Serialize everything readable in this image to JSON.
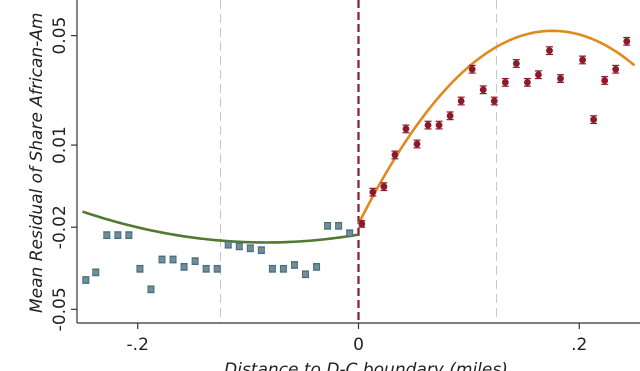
{
  "chart_data": {
    "type": "scatter",
    "xlabel": "Distance to D-C boundary (miles)",
    "ylabel": "Mean Residual of Share African-Am",
    "xlim": [
      -0.255,
      0.255
    ],
    "ylim": [
      -0.055,
      0.063
    ],
    "x_ticks": [
      {
        "value": -0.2,
        "label": "-.2"
      },
      {
        "value": 0,
        "label": "0"
      },
      {
        "value": 0.2,
        "label": ".2"
      }
    ],
    "y_ticks": [
      {
        "value": -0.05,
        "label": "-0.05"
      },
      {
        "value": -0.02,
        "label": "-0.02"
      },
      {
        "value": 0.01,
        "label": "0.01"
      },
      {
        "value": 0.05,
        "label": "0.05"
      }
    ],
    "reference_lines": [
      {
        "x": -0.125,
        "style": "dashed",
        "color": "#c8c8c8"
      },
      {
        "x": 0,
        "style": "dashed",
        "color": "#8b1a2b"
      },
      {
        "x": 0.125,
        "style": "dashed",
        "color": "#c8c8c8"
      }
    ],
    "series": [
      {
        "side": "left",
        "marker": "square",
        "color": "#4a6f7f",
        "fit_color": "#4f7a2f",
        "fit_coeffs": [
          -0.0227,
          0.0688,
          0.4098
        ],
        "points": [
          {
            "x": -0.247,
            "y": -0.0393,
            "err": 0.0012
          },
          {
            "x": -0.238,
            "y": -0.0365,
            "err": 0.0012
          },
          {
            "x": -0.228,
            "y": -0.0229,
            "err": 0.0012
          },
          {
            "x": -0.218,
            "y": -0.0229,
            "err": 0.0012
          },
          {
            "x": -0.208,
            "y": -0.0229,
            "err": 0.0012
          },
          {
            "x": -0.198,
            "y": -0.0352,
            "err": 0.0012
          },
          {
            "x": -0.188,
            "y": -0.0427,
            "err": 0.0012
          },
          {
            "x": -0.178,
            "y": -0.0318,
            "err": 0.0012
          },
          {
            "x": -0.168,
            "y": -0.0318,
            "err": 0.0012
          },
          {
            "x": -0.158,
            "y": -0.0345,
            "err": 0.0012
          },
          {
            "x": -0.148,
            "y": -0.0324,
            "err": 0.0012
          },
          {
            "x": -0.138,
            "y": -0.0352,
            "err": 0.0012
          },
          {
            "x": -0.128,
            "y": -0.0352,
            "err": 0.0012
          },
          {
            "x": -0.118,
            "y": -0.0264,
            "err": 0.0012
          },
          {
            "x": -0.108,
            "y": -0.027,
            "err": 0.0012
          },
          {
            "x": -0.098,
            "y": -0.0277,
            "err": 0.0012
          },
          {
            "x": -0.088,
            "y": -0.0284,
            "err": 0.0012
          },
          {
            "x": -0.078,
            "y": -0.0352,
            "err": 0.0012
          },
          {
            "x": -0.068,
            "y": -0.0352,
            "err": 0.0012
          },
          {
            "x": -0.058,
            "y": -0.0338,
            "err": 0.0012
          },
          {
            "x": -0.048,
            "y": -0.0372,
            "err": 0.0012
          },
          {
            "x": -0.038,
            "y": -0.0345,
            "err": 0.0012
          },
          {
            "x": -0.028,
            "y": -0.0195,
            "err": 0.0012
          },
          {
            "x": -0.018,
            "y": -0.0195,
            "err": 0.0012
          },
          {
            "x": -0.008,
            "y": -0.0222,
            "err": 0.0012
          }
        ]
      },
      {
        "side": "right",
        "marker": "circle",
        "color": "#8b1a2b",
        "fit_color": "#e08a1e",
        "fit_coeffs": [
          -0.0188,
          0.8031,
          -2.2857
        ],
        "points": [
          {
            "x": 0.003,
            "y": -0.0188,
            "err": 0.0012
          },
          {
            "x": 0.013,
            "y": -0.0072,
            "err": 0.0014
          },
          {
            "x": 0.023,
            "y": -0.0052,
            "err": 0.0014
          },
          {
            "x": 0.033,
            "y": 0.0064,
            "err": 0.0014
          },
          {
            "x": 0.043,
            "y": 0.0159,
            "err": 0.0014
          },
          {
            "x": 0.053,
            "y": 0.0104,
            "err": 0.0014
          },
          {
            "x": 0.063,
            "y": 0.0173,
            "err": 0.0014
          },
          {
            "x": 0.073,
            "y": 0.0173,
            "err": 0.0014
          },
          {
            "x": 0.083,
            "y": 0.0207,
            "err": 0.0014
          },
          {
            "x": 0.093,
            "y": 0.0261,
            "err": 0.0014
          },
          {
            "x": 0.103,
            "y": 0.0377,
            "err": 0.0014
          },
          {
            "x": 0.113,
            "y": 0.0302,
            "err": 0.0014
          },
          {
            "x": 0.123,
            "y": 0.0261,
            "err": 0.0014
          },
          {
            "x": 0.133,
            "y": 0.0329,
            "err": 0.0014
          },
          {
            "x": 0.143,
            "y": 0.0398,
            "err": 0.0014
          },
          {
            "x": 0.153,
            "y": 0.0329,
            "err": 0.0014
          },
          {
            "x": 0.163,
            "y": 0.0357,
            "err": 0.0014
          },
          {
            "x": 0.173,
            "y": 0.0445,
            "err": 0.0014
          },
          {
            "x": 0.183,
            "y": 0.0343,
            "err": 0.0014
          },
          {
            "x": 0.203,
            "y": 0.0411,
            "err": 0.0014
          },
          {
            "x": 0.213,
            "y": 0.0193,
            "err": 0.0014
          },
          {
            "x": 0.223,
            "y": 0.0336,
            "err": 0.0014
          },
          {
            "x": 0.233,
            "y": 0.0377,
            "err": 0.0014
          },
          {
            "x": 0.243,
            "y": 0.0479,
            "err": 0.0014
          }
        ]
      }
    ]
  }
}
